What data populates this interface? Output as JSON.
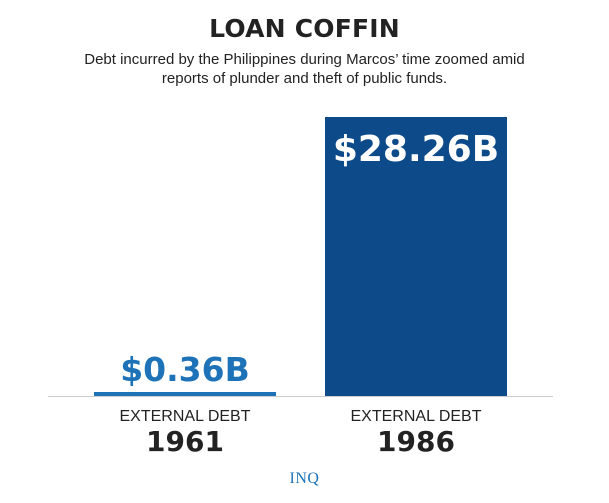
{
  "chart_data": {
    "type": "bar",
    "title": "LOAN COFFIN",
    "subtitle": "Debt incurred by the Philippines during Marcos’ time zoomed amid reports of plunder and theft of public funds.",
    "categories": [
      {
        "label": "EXTERNAL DEBT",
        "year": "1961"
      },
      {
        "label": "EXTERNAL DEBT",
        "year": "1986"
      }
    ],
    "values": [
      0.36,
      28.26
    ],
    "value_labels": [
      "$0.36B",
      "$28.26B"
    ],
    "unit": "B",
    "ylim": [
      0,
      28.26
    ],
    "grid": false,
    "legend": "none"
  },
  "colors": {
    "bar_1961": "#1e73b8",
    "bar_1986": "#0d4a8a",
    "label_1961": "#1e73b8",
    "label_1986": "#ffffff",
    "text": "#222222",
    "baseline": "#cccccc",
    "source": "#1e73b8"
  },
  "source": "INQ"
}
